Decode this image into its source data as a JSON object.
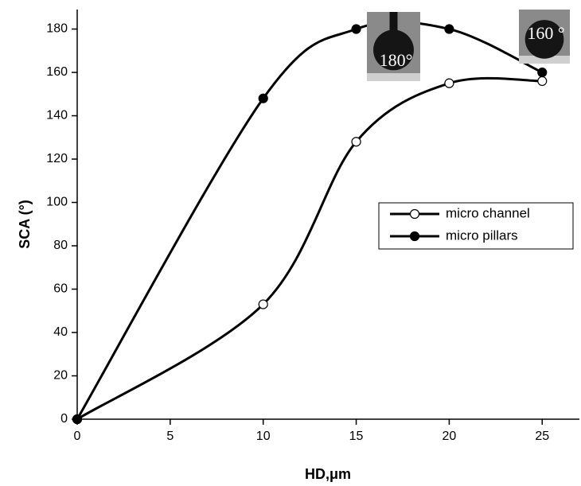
{
  "chart_data": {
    "type": "line",
    "x_label": "HD,μm",
    "y_label": "SCA (°)",
    "x": [
      0,
      10,
      15,
      20,
      25
    ],
    "series": [
      {
        "name": "micro channel",
        "color": "#000000",
        "marker": "open",
        "values": [
          0,
          53,
          128,
          155,
          156
        ]
      },
      {
        "name": "micro pillars",
        "color": "#000000",
        "marker": "filled",
        "values": [
          0,
          148,
          180,
          180,
          160
        ]
      }
    ],
    "xlim": [
      0,
      27
    ],
    "ylim": [
      0,
      189
    ],
    "xticks": [
      0,
      5,
      10,
      15,
      20,
      25
    ],
    "yticks": [
      0,
      20,
      40,
      60,
      80,
      100,
      120,
      140,
      160,
      180
    ],
    "grid": false,
    "legend": "right",
    "annotations": [
      {
        "text": "180°"
      },
      {
        "text": "160 °"
      }
    ]
  }
}
